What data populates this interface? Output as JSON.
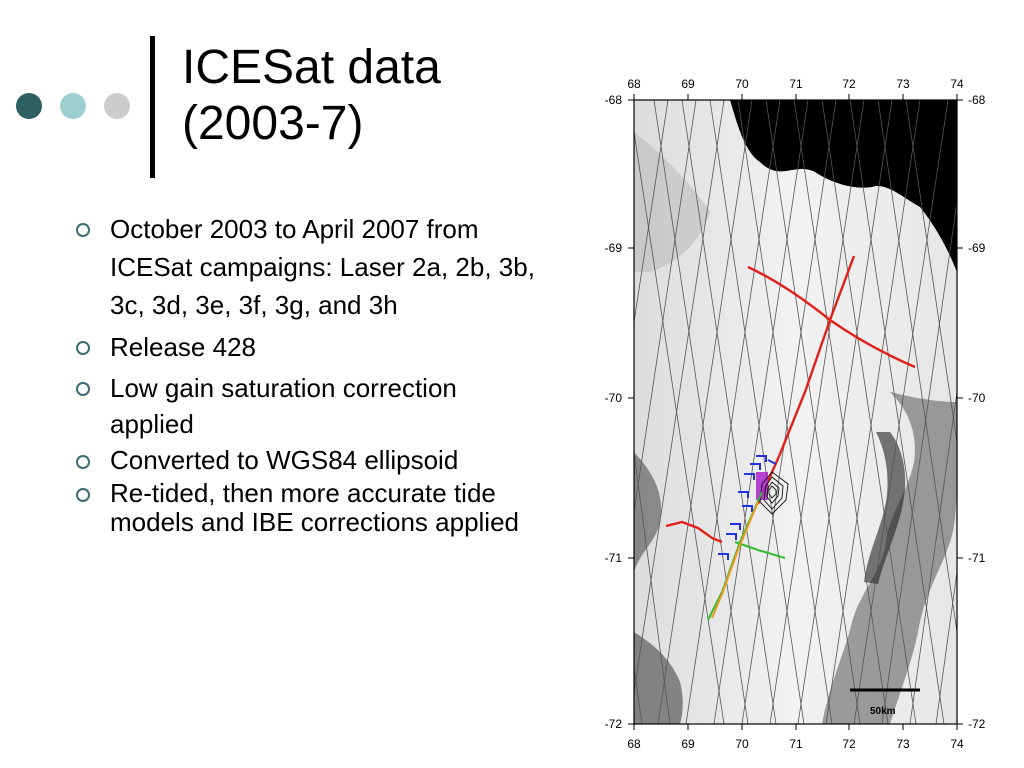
{
  "slide": {
    "title_line1": "ICESat data",
    "title_line2": "(2003-7)",
    "decor_colors": [
      "#2e5f63",
      "#9ccfd0",
      "#cccccc"
    ]
  },
  "bullets": [
    {
      "text": "October 2003 to April 2007 from ICESat campaigns: Laser 2a, 2b, 3b, 3c, 3d, 3e, 3f, 3g, and 3h"
    },
    {
      "text": "Release 428"
    },
    {
      "text": "Low gain saturation correction applied"
    },
    {
      "text": "Converted to WGS84 ellipsoid"
    },
    {
      "text": "Re-tided, then more accurate tide models and IBE corrections applied"
    }
  ],
  "map": {
    "x_ticks": [
      "68",
      "69",
      "70",
      "71",
      "72",
      "73",
      "74"
    ],
    "y_ticks": [
      "-68",
      "-69",
      "-70",
      "-71",
      "-72"
    ],
    "scale_label": "50km",
    "colors": {
      "ocean": "#000000",
      "ice": "#eeeeee",
      "track": "#555555",
      "red_line": "#e0201a",
      "blue_marks": "#2233dd",
      "green_line": "#33bb33",
      "orange_line": "#ee9922"
    }
  }
}
